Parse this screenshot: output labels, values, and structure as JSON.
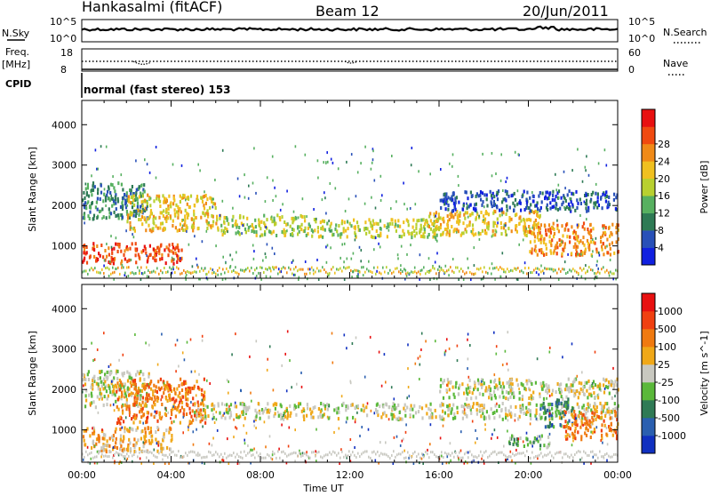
{
  "header": {
    "station": "Hankasalmi (fitACF)",
    "beam": "Beam 12",
    "date": "20/Jun/2011"
  },
  "top_panels": {
    "nsky_label": "N.Sky",
    "nsearch_label": "N.Search",
    "nsky_ticks": [
      "10^5",
      "10^0"
    ],
    "nsearch_ticks": [
      "10^5",
      "10^0"
    ],
    "freq_label": "Freq.",
    "freq_unit": "[MHz]",
    "freq_ticks": [
      "18",
      "8"
    ],
    "nave_label": "Nave",
    "nave_ticks": [
      "60",
      "0"
    ],
    "cpid_label": "CPID",
    "cpid_text": "normal (fast stereo) 153"
  },
  "colors": {
    "power_scale": [
      "#1020e0",
      "#2850b8",
      "#2e7a55",
      "#57b060",
      "#b8d030",
      "#f0c020",
      "#f08a18",
      "#f04a10",
      "#e81010"
    ],
    "velocity_scale": [
      "#1030c0",
      "#2a5fb0",
      "#2f7a55",
      "#5ab83a",
      "#c8c8c0",
      "#f0a818",
      "#f07a10",
      "#f04010",
      "#e81010"
    ]
  },
  "chart_data": [
    {
      "type": "heatmap",
      "title": "Power",
      "ylabel": "Slant Range [km]",
      "xlabel": "Time UT",
      "x_ticks": [
        "00:00",
        "04:00",
        "08:00",
        "12:00",
        "16:00",
        "20:00",
        "00:00"
      ],
      "y_ticks": [
        "1000",
        "2000",
        "3000",
        "4000"
      ],
      "ylim": [
        200,
        4600
      ],
      "xlim_hours": [
        0,
        24
      ],
      "colorbar_label": "Power [dB]",
      "colorbar_ticks": [
        "4",
        "8",
        "12",
        "16",
        "20",
        "24",
        "28"
      ],
      "regions": [
        {
          "t0": 0.0,
          "t1": 3.0,
          "r0": 1700,
          "r1": 2600,
          "level": 2
        },
        {
          "t0": 2.0,
          "t1": 6.0,
          "r0": 1400,
          "r1": 2300,
          "level": 5
        },
        {
          "t0": 0.0,
          "t1": 4.5,
          "r0": 600,
          "r1": 1100,
          "level": 7
        },
        {
          "t0": 6.0,
          "t1": 10.0,
          "r0": 1300,
          "r1": 1800,
          "level": 4
        },
        {
          "t0": 10.0,
          "t1": 16.0,
          "r0": 1250,
          "r1": 1700,
          "level": 4
        },
        {
          "t0": 15.5,
          "t1": 20.5,
          "r0": 1300,
          "r1": 1900,
          "level": 5
        },
        {
          "t0": 20.0,
          "t1": 24.0,
          "r0": 800,
          "r1": 1600,
          "level": 6
        },
        {
          "t0": 16.0,
          "t1": 24.0,
          "r0": 1900,
          "r1": 2400,
          "level": 1
        }
      ]
    },
    {
      "type": "heatmap",
      "title": "Velocity",
      "ylabel": "Slant Range [km]",
      "xlabel": "Time UT",
      "x_ticks": [
        "00:00",
        "04:00",
        "08:00",
        "12:00",
        "16:00",
        "20:00",
        "00:00"
      ],
      "y_ticks": [
        "1000",
        "2000",
        "3000",
        "4000"
      ],
      "ylim": [
        200,
        4600
      ],
      "xlim_hours": [
        0,
        24
      ],
      "colorbar_label": "Velocity [m s^-1]",
      "colorbar_ticks": [
        "1000",
        "500",
        "100",
        "25",
        "-25",
        "-100",
        "-500",
        "-1000"
      ],
      "regions": [
        {
          "t0": 0.0,
          "t1": 3.0,
          "r0": 1600,
          "r1": 2500,
          "level": 4
        },
        {
          "t0": 1.5,
          "t1": 5.5,
          "r0": 1200,
          "r1": 2300,
          "level": 6
        },
        {
          "t0": 0.0,
          "t1": 4.0,
          "r0": 500,
          "r1": 1100,
          "level": 5
        },
        {
          "t0": 5.0,
          "t1": 24.0,
          "r0": 1300,
          "r1": 1700,
          "level": 4
        },
        {
          "t0": 16.0,
          "t1": 24.0,
          "r0": 1800,
          "r1": 2300,
          "level": 4
        },
        {
          "t0": 19.0,
          "t1": 21.0,
          "r0": 600,
          "r1": 900,
          "level": 3
        },
        {
          "t0": 20.5,
          "t1": 22.0,
          "r0": 1100,
          "r1": 1800,
          "level": 2
        },
        {
          "t0": 21.5,
          "t1": 24.0,
          "r0": 800,
          "r1": 1500,
          "level": 6
        }
      ]
    }
  ]
}
